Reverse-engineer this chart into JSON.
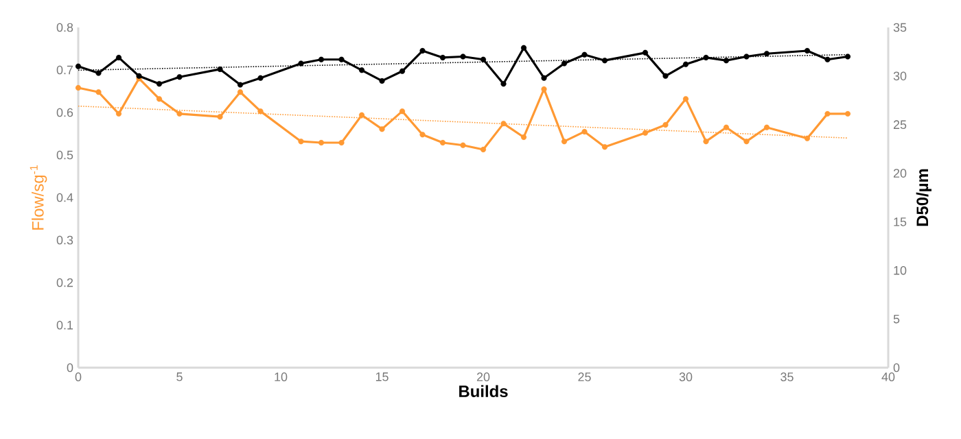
{
  "chart_data": {
    "type": "line",
    "xlabel": "Builds",
    "ylabel": "Flow/sg$^{-1}$",
    "y2label": "D50/µm",
    "xlim": [
      0,
      40
    ],
    "xticks": [
      0,
      5,
      10,
      15,
      20,
      25,
      30,
      35,
      40
    ],
    "ylim": [
      0,
      0.8
    ],
    "yticks": [
      0,
      0.1,
      0.2,
      0.3,
      0.4,
      0.5,
      0.6,
      0.7,
      0.8
    ],
    "y2lim": [
      0,
      35
    ],
    "y2ticks": [
      0,
      5,
      10,
      15,
      20,
      25,
      30,
      35
    ],
    "marker": "circle",
    "line_style": "solid",
    "grid": false,
    "series": [
      {
        "color": "#ff9933",
        "x": [
          0,
          1,
          2,
          3,
          4,
          5,
          7,
          8,
          9,
          11,
          12,
          13,
          14,
          15,
          16,
          17,
          18,
          19,
          20,
          21,
          22,
          23,
          24,
          25,
          26,
          28,
          29,
          30,
          31,
          32,
          33,
          34,
          36,
          37,
          38
        ],
        "values": [
          0.658,
          0.648,
          0.597,
          0.68,
          0.632,
          0.597,
          0.59,
          0.648,
          0.603,
          0.532,
          0.529,
          0.529,
          0.594,
          0.561,
          0.603,
          0.548,
          0.529,
          0.523,
          0.513,
          0.574,
          0.542,
          0.655,
          0.532,
          0.555,
          0.519,
          0.552,
          0.571,
          0.632,
          0.532,
          0.565,
          0.532,
          0.565,
          0.539,
          0.597,
          0.597
        ]
      },
      {
        "color": "#000000",
        "axis": "y2",
        "x": [
          0,
          1,
          2,
          3,
          4,
          5,
          7,
          8,
          9,
          11,
          12,
          13,
          14,
          15,
          16,
          17,
          18,
          19,
          20,
          21,
          22,
          23,
          24,
          25,
          26,
          28,
          29,
          30,
          31,
          32,
          33,
          34,
          36,
          37,
          38
        ],
        "values": [
          31.0,
          30.3,
          31.9,
          30.0,
          29.2,
          29.9,
          30.7,
          29.1,
          29.8,
          31.3,
          31.7,
          31.7,
          30.6,
          29.5,
          30.5,
          32.6,
          31.9,
          32.0,
          31.7,
          29.2,
          32.9,
          29.8,
          31.3,
          32.2,
          31.6,
          32.4,
          30.0,
          31.2,
          31.9,
          31.6,
          32.0,
          32.3,
          32.6,
          31.7,
          32.0
        ]
      },
      {
        "type": "line",
        "color": "#ff9933",
        "marker": "none",
        "line_style": "dotted",
        "x": [
          0,
          38
        ],
        "values": [
          0.615,
          0.54
        ]
      },
      {
        "type": "line",
        "color": "#000000",
        "axis": "y2",
        "marker": "none",
        "line_style": "dotted",
        "x": [
          0,
          38
        ],
        "values": [
          30.6,
          32.2
        ]
      }
    ]
  }
}
